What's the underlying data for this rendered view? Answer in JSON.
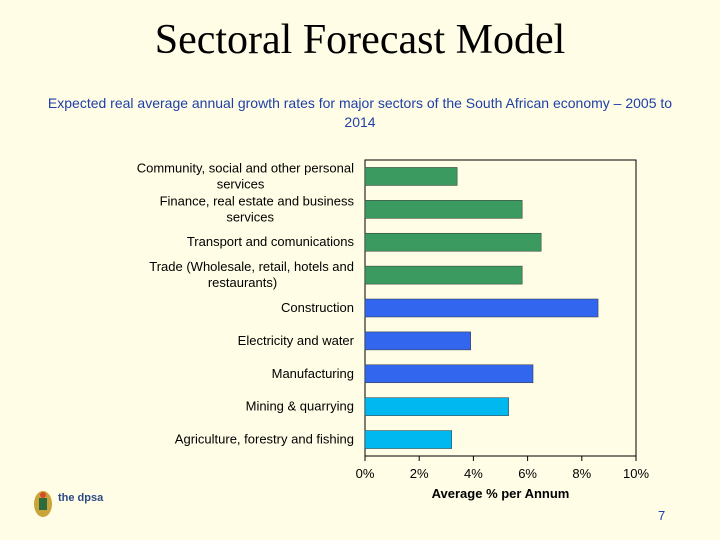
{
  "slide": {
    "title": "Sectoral Forecast Model",
    "subtitle": "Expected real average annual growth rates for major sectors of the South African economy – 2005 to 2014",
    "page_number": "7",
    "logo_text": "the dpsa"
  },
  "chart_data": {
    "type": "bar",
    "orientation": "horizontal",
    "title": "",
    "xlabel": "Average % per Annum",
    "ylabel": "",
    "xlim": [
      0,
      10
    ],
    "ticks": [
      "0%",
      "2%",
      "4%",
      "6%",
      "8%",
      "10%"
    ],
    "grid": false,
    "categories": [
      "Community, social and other personal services",
      "Finance, real estate and business services",
      "Transport and comunications",
      "Trade (Wholesale, retail, hotels and restaurants)",
      "Construction",
      "Electricity and water",
      "Manufacturing",
      "Mining & quarrying",
      "Agriculture, forestry and fishing"
    ],
    "values": [
      3.4,
      5.8,
      6.5,
      5.8,
      8.6,
      3.9,
      6.2,
      5.3,
      3.2
    ],
    "colors": [
      "#3a9a5f",
      "#3a9a5f",
      "#3a9a5f",
      "#3a9a5f",
      "#3366ee",
      "#3366ee",
      "#3366ee",
      "#00b8f0",
      "#00b8f0"
    ]
  }
}
